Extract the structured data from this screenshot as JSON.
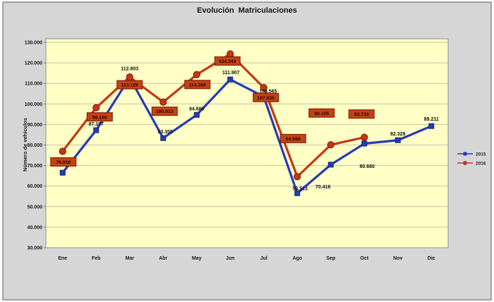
{
  "chart_data": {
    "type": "line",
    "title": "Evolución  Matriculaciones",
    "ylabel": "Número de vehículos",
    "categories": [
      "Ene",
      "Feb",
      "Mar",
      "Abr",
      "May",
      "Jun",
      "Jul",
      "Ago",
      "Sep",
      "Oct",
      "Nov",
      "Dic"
    ],
    "y_axis": {
      "min": 30000,
      "max": 130000,
      "step": 10000,
      "tick_labels": [
        "30.000",
        "40.000",
        "50.000",
        "60.000",
        "70.000",
        "80.000",
        "90.000",
        "100.000",
        "110.000",
        "120.000",
        "130.000"
      ]
    },
    "grid": true,
    "figure_bg": "#d6d6d6",
    "figure_border": "#595959",
    "plot_bg": "#ffffc6",
    "grid_color": "#c2c2a8",
    "plot_border": "#909090",
    "series": [
      {
        "name": "2015",
        "color": "#2639bd",
        "marker": "square",
        "marker_border": "#18266e",
        "label_style": "text",
        "values": [
          66500,
          87197,
          112803,
          83355,
          94680,
          111907,
          103565,
          56513,
          70416,
          80680,
          82329,
          89211
        ],
        "labels": [
          null,
          "87.197",
          "112.803",
          "83.355",
          "94.680",
          "111.907",
          "103.565",
          "56.513",
          "70.416",
          "80.680",
          "82.329",
          "89.211"
        ],
        "label_offsets": [
          null,
          [
            0,
            -9
          ],
          [
            0,
            -13
          ],
          [
            3,
            -9
          ],
          [
            0,
            -9
          ],
          [
            1,
            -10
          ],
          [
            6,
            -8
          ],
          [
            4,
            -7
          ],
          [
            -11,
            31
          ],
          [
            4,
            32
          ],
          [
            0,
            -9
          ],
          [
            0,
            -10
          ]
        ]
      },
      {
        "name": "2016",
        "color": "#c23812",
        "marker": "circle",
        "marker_border": "#7d1a02",
        "label_style": "box",
        "box_fill": "#c04315",
        "box_border": "#7d1a02",
        "values": [
          76916,
          98160,
          113129,
          100913,
          114289,
          124343,
          107936,
          64588,
          80105,
          83733,
          null,
          null
        ],
        "labels": [
          "76.916",
          "98.160",
          "113.129",
          "100.913",
          "114.289",
          "124.343",
          "107.936",
          "64.588",
          "80.105",
          "83.733",
          null,
          null
        ],
        "label_offsets": [
          [
            1,
            15
          ],
          [
            5,
            13
          ],
          [
            0,
            11
          ],
          [
            2,
            13
          ],
          [
            1,
            14
          ],
          [
            -4,
            10
          ],
          [
            3,
            14
          ],
          [
            -6,
            -54
          ],
          [
            -13,
            -45
          ],
          [
            -4,
            -33
          ],
          null,
          null
        ]
      }
    ],
    "legend": {
      "position": "right",
      "entries": [
        {
          "label": "2015",
          "color": "#2639bd",
          "marker": "square"
        },
        {
          "label": "2016",
          "color": "#c23812",
          "marker": "circle"
        }
      ]
    }
  }
}
